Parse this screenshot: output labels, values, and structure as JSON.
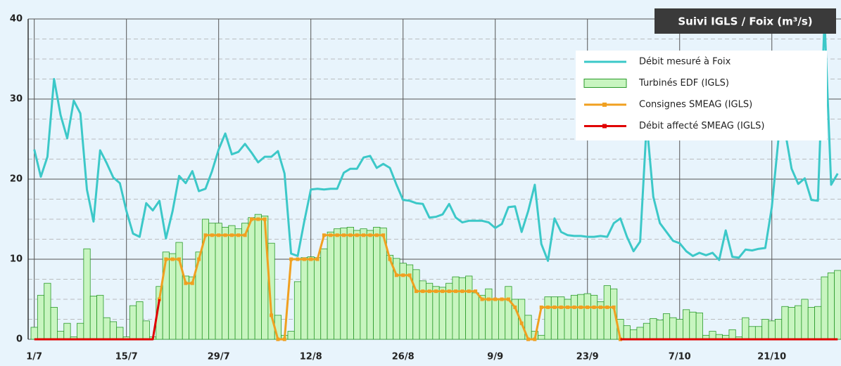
{
  "chart_data": {
    "type": "combo",
    "title": "Suivi IGLS / Foix (m³/s)",
    "categories": [
      "1/7",
      null,
      null,
      null,
      null,
      null,
      null,
      null,
      null,
      null,
      null,
      null,
      null,
      null,
      "15/7",
      null,
      null,
      null,
      null,
      null,
      null,
      null,
      null,
      null,
      null,
      null,
      null,
      null,
      "29/7",
      null,
      null,
      null,
      null,
      null,
      null,
      null,
      null,
      null,
      null,
      null,
      null,
      null,
      "12/8",
      null,
      null,
      null,
      null,
      null,
      null,
      null,
      null,
      null,
      null,
      null,
      null,
      null,
      "26/8",
      null,
      null,
      null,
      null,
      null,
      null,
      null,
      null,
      null,
      null,
      null,
      null,
      null,
      "9/9",
      null,
      null,
      null,
      null,
      null,
      null,
      null,
      null,
      null,
      null,
      null,
      null,
      null,
      "23/9",
      null,
      null,
      null,
      null,
      null,
      null,
      null,
      null,
      null,
      null,
      null,
      null,
      null,
      "7/10",
      null,
      null,
      null,
      null,
      null,
      null,
      null,
      null,
      null,
      null,
      null,
      null,
      null,
      "21/10",
      null,
      null,
      null,
      null,
      null,
      null,
      null,
      null,
      null,
      null
    ],
    "ylim": [
      0,
      40
    ],
    "yticks": [
      0,
      10,
      20,
      30,
      40
    ],
    "grid": true,
    "legend": "upper right",
    "series": [
      {
        "name": "Débit mesuré à Foix",
        "type": "line",
        "color": "#3cc8c8",
        "width": 3,
        "values": [
          23.7,
          20.3,
          22.8,
          32.5,
          28,
          25.1,
          29.8,
          28.2,
          18.7,
          14.7,
          23.6,
          22,
          20.2,
          19.5,
          16,
          13.2,
          12.8,
          17,
          16.1,
          17.3,
          12.6,
          16,
          20.4,
          19.5,
          21,
          18.5,
          18.8,
          21,
          23.7,
          25.7,
          23.1,
          23.4,
          24.4,
          23.3,
          22.1,
          22.8,
          22.8,
          23.5,
          20.7,
          10.7,
          10.4,
          14.7,
          18.7,
          18.8,
          18.7,
          18.8,
          18.8,
          20.8,
          21.3,
          21.3,
          22.7,
          22.9,
          21.4,
          21.9,
          21.4,
          19.3,
          17.4,
          17.3,
          17,
          16.9,
          15.2,
          15.3,
          15.6,
          16.9,
          15.2,
          14.6,
          14.8,
          14.8,
          14.8,
          14.6,
          13.9,
          14.4,
          16.5,
          16.6,
          13.4,
          16,
          19.3,
          11.9,
          9.8,
          15.1,
          13.4,
          13,
          12.9,
          12.9,
          12.8,
          12.8,
          12.9,
          12.8,
          14.5,
          15.1,
          12.8,
          11,
          12.2,
          27,
          17.8,
          14.5,
          13.4,
          12.3,
          12,
          11,
          10.4,
          10.8,
          10.5,
          10.8,
          9.9,
          13.6,
          10.3,
          10.2,
          11.2,
          11.1,
          11.3,
          11.4,
          16.5,
          25,
          26,
          21.3,
          19.4,
          20.1,
          17.4,
          17.3,
          40,
          19.3,
          20.7
        ]
      },
      {
        "name": "Turbinés EDF (IGLS)",
        "type": "bar",
        "color": "#c8f5c0",
        "edge": "#2a9a2a",
        "values": [
          1.5,
          5.5,
          7,
          4,
          1,
          2,
          0.3,
          2,
          11.3,
          5.4,
          5.5,
          2.7,
          2.2,
          1.5,
          0.3,
          4.2,
          4.7,
          2.3,
          0.3,
          6.6,
          10.9,
          10.7,
          12.1,
          7.9,
          7.8,
          10.9,
          15,
          14.5,
          14.5,
          14,
          14.2,
          13.8,
          14.5,
          15.2,
          15.6,
          15.4,
          12,
          3,
          0.5,
          1,
          7.2,
          10.2,
          10.3,
          10.2,
          11.3,
          13.4,
          13.8,
          13.9,
          14,
          13.6,
          13.8,
          13.6,
          14,
          13.9,
          10.5,
          10.1,
          9.5,
          9.3,
          8.7,
          7.3,
          7,
          6.6,
          6.5,
          7,
          7.8,
          7.7,
          7.9,
          5.8,
          5.5,
          6.3,
          5.1,
          5.1,
          6.6,
          5,
          5,
          3,
          1,
          0.5,
          5.3,
          5.3,
          5.3,
          5,
          5.5,
          5.6,
          5.7,
          5.5,
          4.7,
          6.7,
          6.3,
          2.5,
          1.7,
          1.2,
          1.5,
          2,
          2.6,
          2.4,
          3.2,
          2.7,
          2.5,
          3.7,
          3.4,
          3.3,
          0.5,
          1,
          0.6,
          0.5,
          1.2,
          0.3,
          2.7,
          1.6,
          1.6,
          2.5,
          2.3,
          2.5,
          4.1,
          4,
          4.2,
          5,
          4,
          4.1,
          7.8,
          8.3,
          8.6
        ]
      },
      {
        "name": "Consignes SMEAG (IGLS)",
        "type": "line",
        "color": "#f0a020",
        "width": 3,
        "markers": true,
        "values": [
          null,
          null,
          null,
          null,
          null,
          null,
          null,
          null,
          null,
          null,
          null,
          null,
          null,
          null,
          null,
          null,
          null,
          null,
          null,
          5,
          10,
          10,
          10,
          7,
          7,
          10,
          13,
          13,
          13,
          13,
          13,
          13,
          13,
          15,
          15,
          15,
          3,
          0,
          0,
          10,
          10,
          10,
          10,
          10,
          13,
          13,
          13,
          13,
          13,
          13,
          13,
          13,
          13,
          13,
          10,
          8,
          8,
          8,
          6,
          6,
          6,
          6,
          6,
          6,
          6,
          6,
          6,
          6,
          5,
          5,
          5,
          5,
          5,
          4,
          2,
          0,
          0,
          4,
          4,
          4,
          4,
          4,
          4,
          4,
          4,
          4,
          4,
          4,
          4,
          0,
          null,
          null,
          null,
          null,
          null,
          null,
          null,
          null,
          null,
          null,
          null,
          null,
          null,
          null,
          null,
          null,
          null,
          null,
          null,
          null,
          null,
          null,
          null,
          null,
          null,
          null,
          null,
          null,
          null,
          null,
          null,
          null,
          null
        ]
      },
      {
        "name": "Débit affecté SMEAG (IGLS)",
        "type": "line",
        "color": "#e00000",
        "width": 3,
        "values": [
          0,
          0,
          0,
          0,
          0,
          0,
          0,
          0,
          0,
          0,
          0,
          0,
          0,
          0,
          0,
          0,
          0,
          0,
          0,
          5,
          null,
          null,
          null,
          null,
          null,
          null,
          null,
          null,
          null,
          null,
          null,
          null,
          null,
          null,
          null,
          null,
          null,
          null,
          null,
          null,
          null,
          null,
          null,
          null,
          null,
          null,
          null,
          null,
          null,
          null,
          null,
          null,
          null,
          null,
          null,
          null,
          null,
          null,
          null,
          null,
          null,
          null,
          null,
          null,
          null,
          null,
          null,
          null,
          null,
          null,
          null,
          null,
          null,
          null,
          null,
          null,
          null,
          null,
          null,
          null,
          null,
          null,
          null,
          null,
          null,
          null,
          null,
          null,
          null,
          0,
          0,
          0,
          0,
          0,
          0,
          0,
          0,
          0,
          0,
          0,
          0,
          0,
          0,
          0,
          0,
          0,
          0,
          0,
          0,
          0,
          0,
          0,
          0,
          0,
          0,
          0,
          0,
          0,
          0,
          0,
          0,
          0,
          0
        ]
      }
    ]
  }
}
